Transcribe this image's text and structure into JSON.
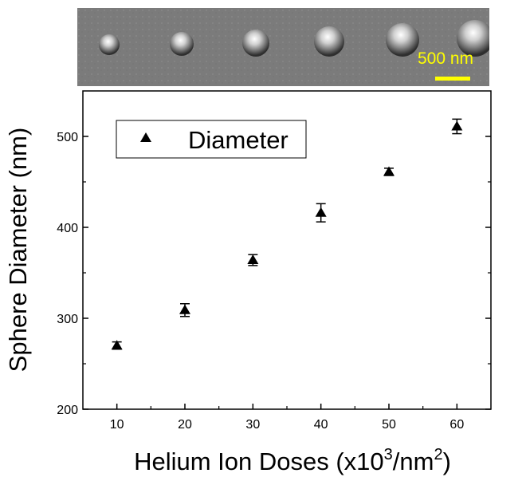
{
  "sem_image": {
    "scale_bar_label": "500 nm",
    "scale_bar_color": "#ffff00"
  },
  "chart_data": {
    "type": "scatter",
    "xlabel": "Helium Ion Doses (x10",
    "xlabel_sup1": "3",
    "xlabel_mid": "/nm",
    "xlabel_sup2": "2",
    "xlabel_end": ")",
    "ylabel": "Sphere Diameter (nm)",
    "xlim": [
      5,
      65
    ],
    "ylim": [
      200,
      550
    ],
    "x_ticks": [
      10,
      20,
      30,
      40,
      50,
      60
    ],
    "y_ticks": [
      200,
      300,
      400,
      500
    ],
    "legend": {
      "label": "Diameter",
      "marker": "triangle",
      "position": "top-left"
    },
    "series": [
      {
        "name": "Diameter",
        "x": [
          10,
          20,
          30,
          40,
          50,
          60
        ],
        "y": [
          270,
          309,
          364,
          416,
          461,
          511
        ],
        "error": [
          4,
          7,
          6,
          10,
          4,
          8
        ]
      }
    ]
  }
}
